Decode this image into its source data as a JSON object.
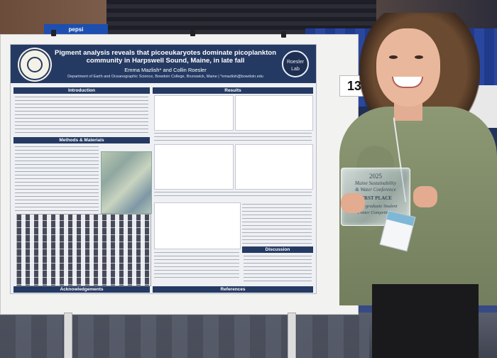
{
  "scene": {
    "banner_text": "pepsi",
    "table_number": "13",
    "poster": {
      "title": "Pigment analysis reveals that picoeukaryotes dominate picoplankton community in Harpswell Sound, Maine, in late fall",
      "authors": "Emma Mazlish* and Collin Roesler",
      "affiliation": "Department of Earth and Oceanographic Science, Bowdoin College, Brunswick, Maine | *emazlish@bowdoin.edu",
      "lab_logo_text": "Roesler Lab",
      "sections": {
        "introduction": "Introduction",
        "methods": "Methods & Materials",
        "results": "Results",
        "discussion": "Discussion",
        "acknowledgements": "Acknowledgements",
        "references": "References"
      }
    },
    "award": {
      "year": "2025",
      "line1": "Maine Sustainability",
      "line2": "& Water Conference",
      "place": "FIRST PLACE",
      "category": "Undergraduate Student",
      "category2": "Poster Competition"
    }
  }
}
